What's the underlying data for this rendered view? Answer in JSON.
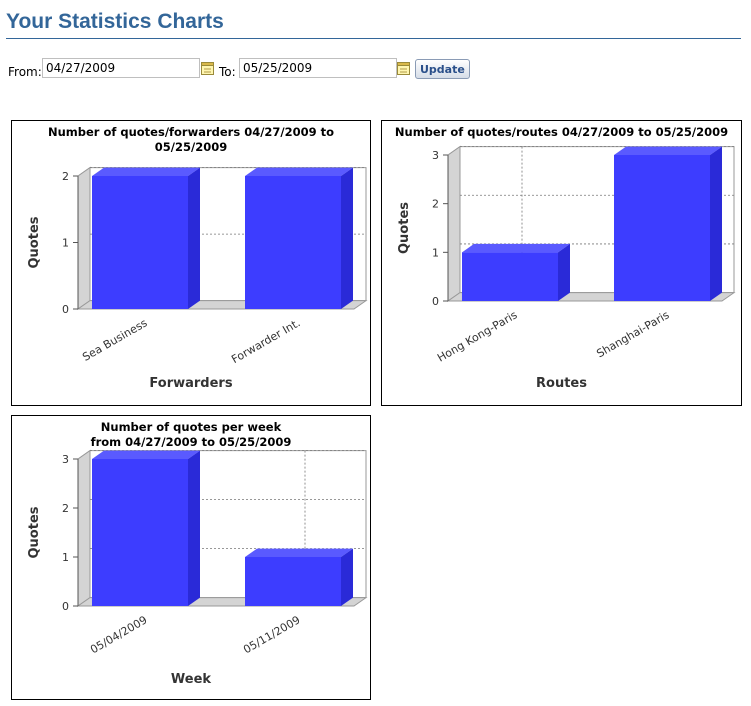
{
  "page": {
    "title": "Your Statistics Charts"
  },
  "filter": {
    "from_label": "From:",
    "from_value": "04/27/2009",
    "to_label": "To:",
    "to_value": "05/25/2009",
    "update_label": "Update",
    "calendar_icon": "calendar-icon"
  },
  "colors": {
    "bar": "#3d3dff",
    "title": "#336699"
  },
  "chart_data": [
    {
      "type": "bar",
      "title": "Number of quotes/forwarders 04/27/2009 to 05/25/2009",
      "title_lines": [
        "Number of quotes/forwarders 04/27/2009 to",
        "05/25/2009"
      ],
      "categories": [
        "Sea Business",
        "Forwarder Int."
      ],
      "values": [
        2,
        2
      ],
      "xlabel": "Forwarders",
      "ylabel": "Quotes",
      "ylim": [
        0,
        2
      ],
      "yticks": [
        0,
        1,
        2
      ],
      "grid": true,
      "legend": "none"
    },
    {
      "type": "bar",
      "title": "Number of quotes/routes 04/27/2009 to 05/25/2009",
      "title_lines": [
        "Number of quotes/routes 04/27/2009 to 05/25/2009"
      ],
      "categories": [
        "Hong Kong-Paris",
        "Shanghai-Paris"
      ],
      "values": [
        1,
        3
      ],
      "xlabel": "Routes",
      "ylabel": "Quotes",
      "ylim": [
        0,
        3
      ],
      "yticks": [
        0,
        1,
        2,
        3
      ],
      "grid": true,
      "legend": "none"
    },
    {
      "type": "bar",
      "title": "Number of quotes per week from 04/27/2009 to 05/25/2009",
      "title_lines": [
        "Number of quotes per week",
        "from 04/27/2009 to 05/25/2009"
      ],
      "categories": [
        "05/04/2009",
        "05/11/2009"
      ],
      "values": [
        3,
        1
      ],
      "xlabel": "Week",
      "ylabel": "Quotes",
      "ylim": [
        0,
        3
      ],
      "yticks": [
        0,
        1,
        2,
        3
      ],
      "grid": true,
      "legend": "none"
    }
  ]
}
